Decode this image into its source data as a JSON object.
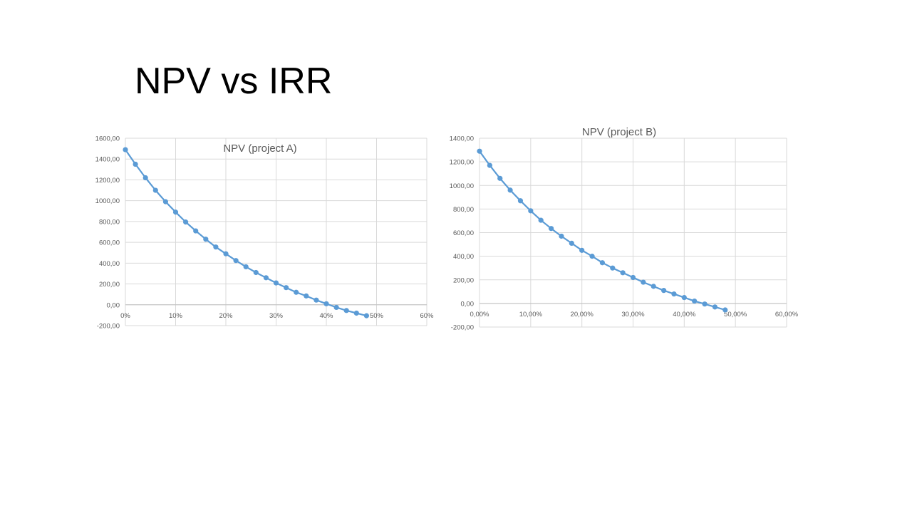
{
  "slide": {
    "title": "NPV vs IRR"
  },
  "colors": {
    "series": "#5b9bd5",
    "grid": "#d9d9d9",
    "tick_text": "#595959",
    "chart_title": "#595959"
  },
  "chart_data": [
    {
      "type": "line",
      "title": "NPV (project A)",
      "xlabel": "",
      "ylabel": "",
      "x_ticks": [
        {
          "v": 0,
          "label": "0%"
        },
        {
          "v": 0.1,
          "label": "10%"
        },
        {
          "v": 0.2,
          "label": "20%"
        },
        {
          "v": 0.3,
          "label": "30%"
        },
        {
          "v": 0.4,
          "label": "40%"
        },
        {
          "v": 0.5,
          "label": "50%"
        },
        {
          "v": 0.6,
          "label": "60%"
        }
      ],
      "y_ticks": [
        {
          "v": -200,
          "label": "-200,00"
        },
        {
          "v": 0,
          "label": "0,00"
        },
        {
          "v": 200,
          "label": "200,00"
        },
        {
          "v": 400,
          "label": "400,00"
        },
        {
          "v": 600,
          "label": "600,00"
        },
        {
          "v": 800,
          "label": "800,00"
        },
        {
          "v": 1000,
          "label": "1000,00"
        },
        {
          "v": 1200,
          "label": "1200,00"
        },
        {
          "v": 1400,
          "label": "1400,00"
        },
        {
          "v": 1600,
          "label": "1600,00"
        }
      ],
      "xlim": [
        0,
        0.6
      ],
      "ylim": [
        -200,
        1600
      ],
      "grid": true,
      "series": [
        {
          "x": [
            0,
            0.02,
            0.04,
            0.06,
            0.08,
            0.1,
            0.12,
            0.14,
            0.16,
            0.18,
            0.2,
            0.22,
            0.24,
            0.26,
            0.28,
            0.3,
            0.32,
            0.34,
            0.36,
            0.38,
            0.4,
            0.42,
            0.44,
            0.46,
            0.48
          ],
          "y": [
            1490,
            1350,
            1220,
            1100,
            990,
            890,
            795,
            710,
            630,
            555,
            490,
            425,
            365,
            310,
            260,
            210,
            165,
            120,
            85,
            45,
            10,
            -25,
            -55,
            -80,
            -105
          ]
        }
      ]
    },
    {
      "type": "line",
      "title": "NPV (project B)",
      "xlabel": "",
      "ylabel": "",
      "x_ticks": [
        {
          "v": 0,
          "label": "0,00%"
        },
        {
          "v": 0.1,
          "label": "10,00%"
        },
        {
          "v": 0.2,
          "label": "20,00%"
        },
        {
          "v": 0.3,
          "label": "30,00%"
        },
        {
          "v": 0.4,
          "label": "40,00%"
        },
        {
          "v": 0.5,
          "label": "50,00%"
        },
        {
          "v": 0.6,
          "label": "60,00%"
        }
      ],
      "y_ticks": [
        {
          "v": -200,
          "label": "-200,00"
        },
        {
          "v": 0,
          "label": "0,00"
        },
        {
          "v": 200,
          "label": "200,00"
        },
        {
          "v": 400,
          "label": "400,00"
        },
        {
          "v": 600,
          "label": "600,00"
        },
        {
          "v": 800,
          "label": "800,00"
        },
        {
          "v": 1000,
          "label": "1000,00"
        },
        {
          "v": 1200,
          "label": "1200,00"
        },
        {
          "v": 1400,
          "label": "1400,00"
        }
      ],
      "xlim": [
        0,
        0.6
      ],
      "ylim": [
        -200,
        1400
      ],
      "grid": true,
      "series": [
        {
          "x": [
            0,
            0.02,
            0.04,
            0.06,
            0.08,
            0.1,
            0.12,
            0.14,
            0.16,
            0.18,
            0.2,
            0.22,
            0.24,
            0.26,
            0.28,
            0.3,
            0.32,
            0.34,
            0.36,
            0.38,
            0.4,
            0.42,
            0.44,
            0.46,
            0.48
          ],
          "y": [
            1290,
            1170,
            1060,
            960,
            870,
            785,
            705,
            635,
            570,
            510,
            450,
            400,
            345,
            300,
            260,
            220,
            180,
            145,
            110,
            80,
            50,
            20,
            -5,
            -30,
            -55
          ]
        }
      ]
    }
  ]
}
